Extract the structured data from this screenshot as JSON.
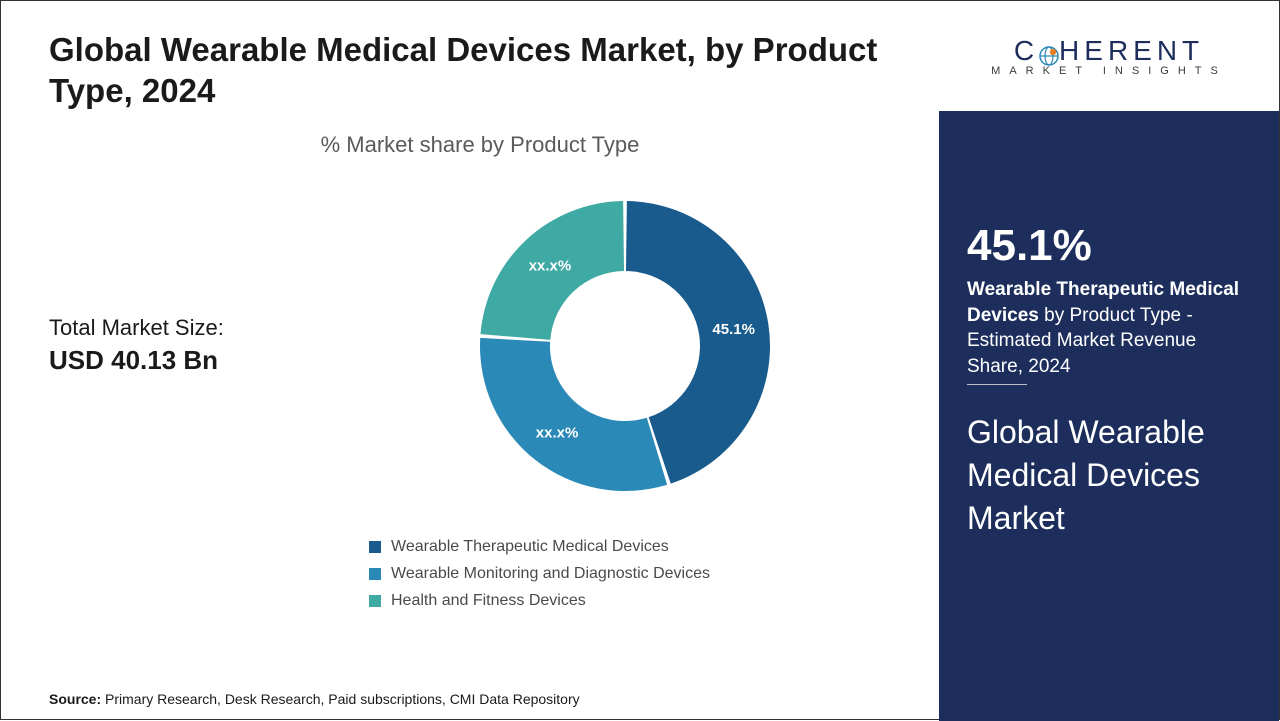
{
  "title": "Global Wearable Medical Devices Market, by Product Type, 2024",
  "chart_subtitle": "% Market share by Product Type",
  "market_size": {
    "label": "Total Market Size:",
    "value": "USD 40.13 Bn"
  },
  "donut": {
    "type": "donut",
    "outer_radius": 145,
    "inner_radius": 75,
    "gap_deg": 1.5,
    "background_color": "#ffffff",
    "slices": [
      {
        "name": "Wearable Therapeutic Medical Devices",
        "value": 45.1,
        "label": "45.1%",
        "color": "#195b8c"
      },
      {
        "name": "Wearable Monitoring and Diagnostic Devices",
        "value": 31.0,
        "label": "xx.x%",
        "color": "#2a89b6"
      },
      {
        "name": "Health and Fitness Devices",
        "value": 23.9,
        "label": "xx.x%",
        "color": "#3fa9a3"
      }
    ]
  },
  "legend": [
    {
      "label": "Wearable Therapeutic Medical Devices",
      "color": "#195b8c"
    },
    {
      "label": "Wearable Monitoring and Diagnostic Devices",
      "color": "#2a89b6"
    },
    {
      "label": "Health and Fitness Devices",
      "color": "#3fa9a3"
    }
  ],
  "source": {
    "prefix": "Source:",
    "text": "Primary Research, Desk Research, Paid subscriptions, CMI Data Repository"
  },
  "logo": {
    "line1_pre": "C",
    "line1_post": "HERENT",
    "line2": "MARKET INSIGHTS",
    "dot_outer": "#2a89b6",
    "dot_inner": "#e67e22"
  },
  "panel": {
    "bg": "#1d2e5c",
    "pct": "45.1%",
    "desc_bold": "Wearable Therapeutic Medical Devices",
    "desc_rest": " by Product Type - Estimated Market Revenue Share, 2024",
    "title": "Global Wearable Medical Devices Market"
  }
}
